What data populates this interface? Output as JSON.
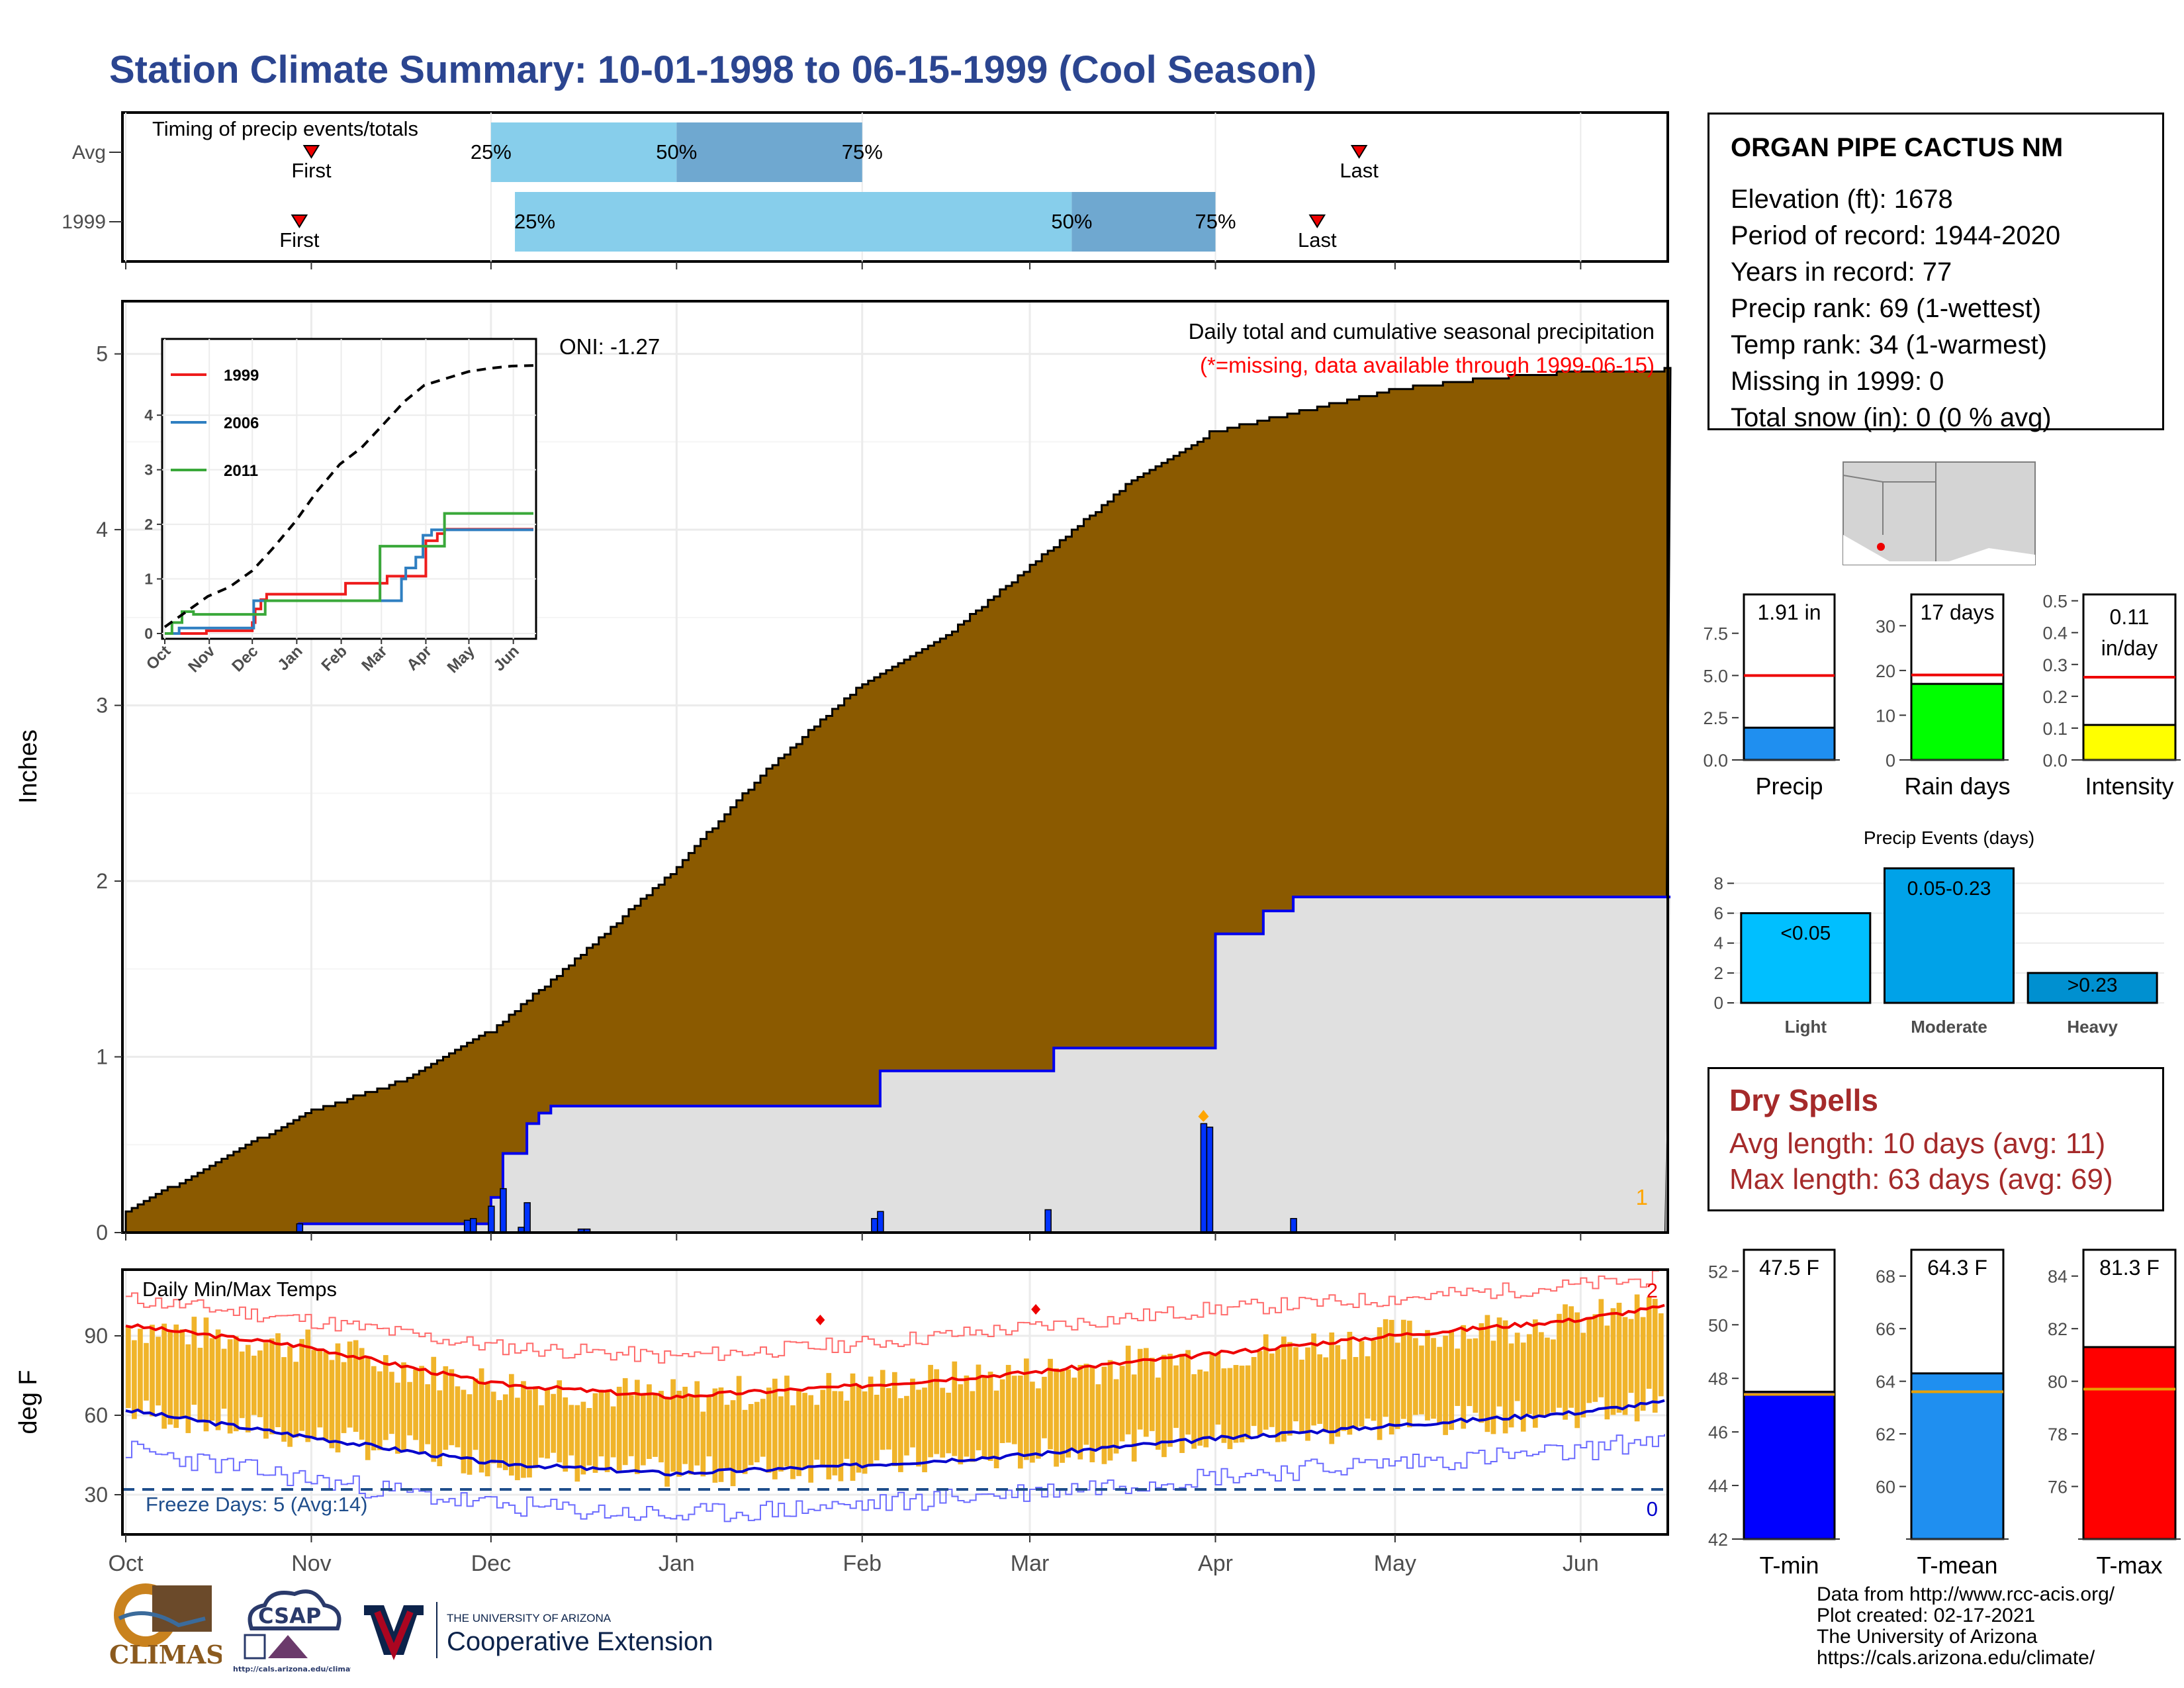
{
  "title": "Station Climate Summary: 10-01-1998 to 06-15-1999 (Cool Season)",
  "station": {
    "name": "ORGAN PIPE CACTUS NM",
    "lines": [
      "Elevation (ft): 1678",
      "Period of record: 1944-2020",
      "Years in record: 77",
      "Precip rank: 69 (1-wettest)",
      "Temp rank: 34 (1-warmest)",
      "Missing in 1999: 0",
      "Total snow (in): 0 (0 % avg)"
    ]
  },
  "dry_spells": {
    "title": "Dry Spells",
    "avg": "Avg length: 10 days (avg: 11)",
    "max": "Max length: 63 days (avg: 69)"
  },
  "credits": {
    "lines": [
      "Data from http://www.rcc-acis.org/",
      "Plot created: 02-17-2021",
      "The University of Arizona",
      "https://cals.arizona.edu/climate/"
    ]
  },
  "logos": {
    "climas": "CLIMAS",
    "csap": "CSAP",
    "csap_url": "http://cals.arizona.edu/climate",
    "ua_small": "THE UNIVERSITY OF ARIZONA",
    "ua_big": "Cooperative Extension"
  },
  "colors": {
    "title": "#2b4590",
    "cumulative_fill": "#8b5a00",
    "missing_text": "#ff0000",
    "light_blue": "#87ceeb",
    "mid_blue": "#6fa8d0",
    "temp_bar": "#f0b42a",
    "dry_spell": "#a52a2a"
  },
  "chart_data": [
    {
      "type": "timeline",
      "title": "Timing of precip events/totals",
      "rows": [
        {
          "label": "Avg",
          "first": "Nov 1",
          "q25": "Dec 1",
          "q50": "Jan 1",
          "q75": "Feb 1",
          "last": "Apr 25"
        },
        {
          "label": "1999",
          "first": "Oct 30",
          "q25": "Dec 5",
          "q50": "Mar 8",
          "q75": "Apr 1",
          "last": "Apr 18"
        }
      ],
      "labels": {
        "first": "First",
        "last": "Last",
        "q25": "25%",
        "q50": "50%",
        "q75": "75%"
      }
    },
    {
      "type": "area",
      "title": "Daily total and cumulative seasonal precipitation",
      "subtitle": "(*=missing, data available through 1999-06-15)",
      "ylabel": "Inches",
      "ylim": [
        0,
        5.3
      ],
      "yticks": [
        0,
        1,
        2,
        3,
        4,
        5
      ],
      "xticks": [
        "Oct",
        "Nov",
        "Dec",
        "Jan",
        "Feb",
        "Mar",
        "Apr",
        "May",
        "Jun"
      ],
      "oni": "ONI: -1.27",
      "missing_count": "1",
      "avg_cumulative": {
        "day": [
          0,
          15,
          30,
          45,
          61,
          75,
          91,
          106,
          122,
          137,
          153,
          167,
          181,
          197,
          212,
          227,
          242,
          257
        ],
        "value": [
          0.12,
          0.4,
          0.68,
          0.85,
          1.15,
          1.55,
          2.05,
          2.6,
          3.1,
          3.4,
          3.85,
          4.25,
          4.55,
          4.68,
          4.8,
          4.86,
          4.9,
          4.91
        ]
      },
      "cumulative_1999": {
        "day": [
          0,
          29,
          57,
          61,
          62,
          63,
          67,
          69,
          71,
          91,
          123,
          126,
          154,
          155,
          180,
          182,
          183,
          190,
          195,
          257
        ],
        "value": [
          0,
          0.05,
          0.05,
          0.2,
          0.2,
          0.45,
          0.62,
          0.68,
          0.72,
          0.72,
          0.72,
          0.92,
          0.92,
          1.05,
          1.05,
          1.7,
          1.7,
          1.83,
          1.91,
          1.91
        ]
      },
      "daily_1999": {
        "day": [
          29,
          57,
          58,
          61,
          63,
          66,
          67,
          76,
          77,
          125,
          126,
          154,
          180,
          181,
          195
        ],
        "value": [
          0.05,
          0.07,
          0.08,
          0.15,
          0.25,
          0.03,
          0.17,
          0.02,
          0.02,
          0.08,
          0.12,
          0.13,
          0.62,
          0.6,
          0.08
        ]
      },
      "inset": {
        "type": "line",
        "ylim": [
          0,
          5.3
        ],
        "yticks": [
          0,
          1,
          2,
          3,
          4
        ],
        "xticks": [
          "Oct",
          "Nov",
          "Dec",
          "Jan",
          "Feb",
          "Mar",
          "Apr",
          "May",
          "Jun"
        ],
        "series": [
          {
            "name": "1999",
            "color": "#ee1c1c",
            "day": [
              0,
              29,
              57,
              61,
              63,
              67,
              71,
              123,
              126,
              154,
              155,
              180,
              182,
              190,
              195,
              257
            ],
            "value": [
              0,
              0.05,
              0.05,
              0.2,
              0.45,
              0.62,
              0.72,
              0.72,
              0.92,
              0.92,
              1.05,
              1.05,
              1.7,
              1.83,
              1.91,
              1.91
            ]
          },
          {
            "name": "2006",
            "color": "#2f7fc1",
            "day": [
              0,
              10,
              60,
              62,
              150,
              165,
              168,
              175,
              180,
              186,
              257
            ],
            "value": [
              0,
              0.1,
              0.1,
              0.6,
              0.6,
              1.0,
              1.2,
              1.4,
              1.8,
              1.9,
              1.9
            ]
          },
          {
            "name": "2011",
            "color": "#3aa83a",
            "day": [
              0,
              5,
              12,
              20,
              60,
              70,
              145,
              150,
              185,
              195,
              257
            ],
            "value": [
              0,
              0.2,
              0.4,
              0.35,
              0.35,
              0.6,
              0.6,
              1.6,
              1.6,
              2.2,
              2.2
            ]
          },
          {
            "name": "",
            "color": "#000000",
            "dashed": true,
            "day": [
              0,
              15,
              30,
              45,
              61,
              75,
              91,
              106,
              122,
              137,
              153,
              167,
              181,
              197,
              212,
              227,
              242,
              257
            ],
            "value": [
              0.12,
              0.4,
              0.68,
              0.85,
              1.15,
              1.55,
              2.05,
              2.6,
              3.1,
              3.4,
              3.85,
              4.25,
              4.55,
              4.68,
              4.8,
              4.86,
              4.9,
              4.91
            ]
          }
        ]
      }
    },
    {
      "type": "bar",
      "title": "Daily Min/Max Temps",
      "ylabel": "deg F",
      "ylim": [
        15,
        115
      ],
      "yticks": [
        30,
        60,
        90
      ],
      "xticks": [
        "Oct",
        "Nov",
        "Dec",
        "Jan",
        "Feb",
        "Mar",
        "Apr",
        "May",
        "Jun"
      ],
      "freeze_text": "Freeze Days: 5 (Avg:14)",
      "freeze_line": 32,
      "record_high_count": "2",
      "record_low_count": "0",
      "avg_max": {
        "day": [
          0,
          30,
          61,
          91,
          122,
          150,
          181,
          211,
          242,
          257
        ],
        "value": [
          94,
          86,
          72,
          67,
          71,
          76,
          83,
          90,
          96,
          101
        ]
      },
      "avg_min": {
        "day": [
          0,
          30,
          61,
          91,
          122,
          150,
          181,
          211,
          242,
          257
        ],
        "value": [
          62,
          52,
          42,
          38,
          41,
          45,
          51,
          56,
          61,
          65
        ]
      },
      "record_max": {
        "day": [
          0,
          30,
          61,
          91,
          122,
          150,
          181,
          211,
          242,
          257
        ],
        "value": [
          104,
          96,
          86,
          82,
          87,
          93,
          100,
          104,
          109,
          112
        ]
      },
      "record_min": {
        "day": [
          0,
          30,
          61,
          91,
          122,
          150,
          181,
          211,
          242,
          257
        ],
        "value": [
          47,
          36,
          26,
          22,
          26,
          31,
          37,
          42,
          46,
          52
        ]
      }
    },
    {
      "type": "bar",
      "title": "",
      "categories": [
        "Precip"
      ],
      "values": [
        1.91
      ],
      "label": "1.91 in",
      "avg": 5.0,
      "ylim": [
        0,
        9.8
      ],
      "yticks": [
        "0.0",
        "2.5",
        "5.0",
        "7.5"
      ],
      "color": "#1f8ff0"
    },
    {
      "type": "bar",
      "categories": [
        "Rain days"
      ],
      "values": [
        17
      ],
      "label": "17 days",
      "avg": 19,
      "ylim": [
        0,
        37
      ],
      "yticks": [
        "0",
        "10",
        "20",
        "30"
      ],
      "color": "#00ff00"
    },
    {
      "type": "bar",
      "categories": [
        "Intensity"
      ],
      "values": [
        0.11
      ],
      "label": "0.11 in/day",
      "label_lines": [
        "0.11",
        "in/day"
      ],
      "avg": 0.26,
      "ylim": [
        0,
        0.52
      ],
      "yticks": [
        "0.0",
        "0.1",
        "0.2",
        "0.3",
        "0.4",
        "0.5"
      ],
      "color": "#ffff00"
    },
    {
      "type": "bar",
      "title": "Precip Events (days)",
      "categories": [
        "Light",
        "Moderate",
        "Heavy"
      ],
      "values": [
        6,
        9,
        2
      ],
      "bar_labels": [
        "<0.05",
        "0.05-0.23",
        ">0.23"
      ],
      "ylim": [
        0,
        9.3
      ],
      "yticks": [
        "0",
        "2",
        "4",
        "6",
        "8"
      ],
      "colors": [
        "#00bfff",
        "#00a2e8",
        "#0090d0"
      ]
    },
    {
      "type": "bar",
      "categories": [
        "T-min"
      ],
      "values": [
        47.5
      ],
      "label": "47.5 F",
      "avg": 47.4,
      "ylim": [
        42,
        52.8
      ],
      "yticks": [
        "42",
        "44",
        "46",
        "48",
        "50",
        "52"
      ],
      "color": "#0000ff"
    },
    {
      "type": "bar",
      "categories": [
        "T-mean"
      ],
      "values": [
        64.3
      ],
      "label": "64.3 F",
      "avg": 63.6,
      "ylim": [
        58,
        69
      ],
      "yticks": [
        "60",
        "62",
        "64",
        "66",
        "68"
      ],
      "color": "#1f8ff0"
    },
    {
      "type": "bar",
      "categories": [
        "T-max"
      ],
      "values": [
        81.3
      ],
      "label": "81.3 F",
      "avg": 79.7,
      "ylim": [
        74,
        85
      ],
      "yticks": [
        "76",
        "78",
        "80",
        "82",
        "84"
      ],
      "color": "#ff0000"
    }
  ]
}
